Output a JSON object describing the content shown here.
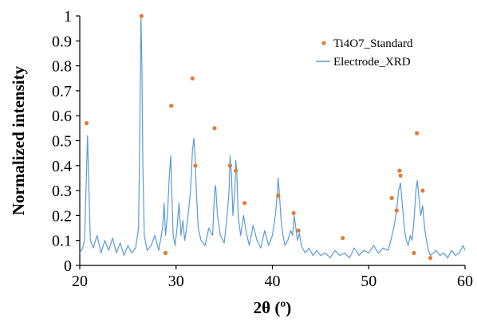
{
  "chart_data": {
    "type": "scatter",
    "xlabel": "2θ (º)",
    "ylabel": "Normalized intensity",
    "xlim": [
      20,
      60
    ],
    "ylim": [
      0,
      1
    ],
    "x_ticks": [
      "20",
      "30",
      "40",
      "50",
      "60"
    ],
    "y_ticks": [
      "0",
      "0.1",
      "0.2",
      "0.3",
      "0.4",
      "0.5",
      "0.6",
      "0.7",
      "0.8",
      "0.9",
      "1"
    ],
    "grid": false,
    "legend_position": "top-right",
    "series": [
      {
        "name": "Ti4O7_Standard",
        "kind": "scatter",
        "color": "#E07B39",
        "x": [
          20.7,
          26.4,
          28.9,
          29.5,
          31.7,
          32.0,
          34.0,
          35.6,
          36.2,
          37.1,
          40.6,
          42.2,
          42.7,
          47.3,
          52.4,
          52.9,
          53.2,
          53.3,
          54.7,
          55.0,
          55.6,
          56.4
        ],
        "y": [
          0.57,
          1.0,
          0.05,
          0.64,
          0.75,
          0.4,
          0.55,
          0.4,
          0.38,
          0.25,
          0.28,
          0.21,
          0.14,
          0.11,
          0.27,
          0.22,
          0.38,
          0.36,
          0.05,
          0.53,
          0.3,
          0.03
        ]
      },
      {
        "name": "Electrode_XRD",
        "kind": "line",
        "color": "#5B9BD5",
        "x": [
          20.0,
          20.3,
          20.5,
          20.65,
          20.8,
          20.95,
          21.1,
          21.4,
          21.8,
          22.2,
          22.6,
          23.0,
          23.4,
          23.8,
          24.2,
          24.6,
          25.0,
          25.4,
          25.8,
          26.1,
          26.25,
          26.35,
          26.45,
          26.55,
          26.7,
          27.0,
          27.4,
          27.8,
          28.2,
          28.6,
          28.75,
          28.9,
          29.1,
          29.3,
          29.45,
          29.55,
          29.7,
          29.9,
          30.1,
          30.3,
          30.5,
          30.7,
          30.9,
          31.1,
          31.3,
          31.5,
          31.7,
          31.85,
          31.95,
          32.1,
          32.3,
          32.6,
          33.0,
          33.4,
          33.8,
          34.0,
          34.1,
          34.3,
          34.6,
          35.0,
          35.3,
          35.5,
          35.6,
          35.75,
          35.9,
          36.1,
          36.2,
          36.3,
          36.45,
          36.7,
          37.0,
          37.3,
          37.6,
          38.0,
          38.4,
          38.8,
          39.2,
          39.6,
          40.0,
          40.3,
          40.5,
          40.6,
          40.7,
          40.9,
          41.1,
          41.3,
          41.6,
          41.9,
          42.1,
          42.25,
          42.4,
          42.6,
          42.8,
          43.0,
          43.4,
          43.8,
          44.2,
          44.6,
          45.0,
          45.5,
          46.0,
          46.5,
          47.0,
          47.5,
          48.0,
          48.5,
          49.0,
          49.5,
          50.0,
          50.5,
          51.0,
          51.5,
          52.0,
          52.3,
          52.6,
          52.9,
          53.1,
          53.3,
          53.5,
          53.7,
          53.9,
          54.1,
          54.3,
          54.5,
          54.7,
          54.9,
          55.05,
          55.2,
          55.4,
          55.6,
          55.8,
          56.0,
          56.2,
          56.4,
          56.7,
          57.0,
          57.4,
          57.8,
          58.2,
          58.6,
          59.0,
          59.4,
          59.8,
          60.0
        ],
        "y": [
          0.05,
          0.07,
          0.1,
          0.3,
          0.52,
          0.3,
          0.1,
          0.07,
          0.12,
          0.05,
          0.1,
          0.06,
          0.11,
          0.05,
          0.09,
          0.04,
          0.08,
          0.05,
          0.07,
          0.15,
          0.6,
          1.0,
          0.8,
          0.4,
          0.12,
          0.06,
          0.08,
          0.12,
          0.06,
          0.15,
          0.25,
          0.12,
          0.2,
          0.36,
          0.44,
          0.3,
          0.12,
          0.08,
          0.15,
          0.25,
          0.12,
          0.18,
          0.1,
          0.15,
          0.22,
          0.3,
          0.46,
          0.51,
          0.45,
          0.3,
          0.15,
          0.1,
          0.08,
          0.15,
          0.12,
          0.3,
          0.32,
          0.2,
          0.12,
          0.09,
          0.2,
          0.3,
          0.44,
          0.36,
          0.2,
          0.3,
          0.42,
          0.38,
          0.2,
          0.12,
          0.2,
          0.13,
          0.08,
          0.16,
          0.1,
          0.07,
          0.14,
          0.08,
          0.12,
          0.2,
          0.28,
          0.35,
          0.3,
          0.18,
          0.12,
          0.08,
          0.1,
          0.14,
          0.12,
          0.2,
          0.16,
          0.1,
          0.13,
          0.08,
          0.05,
          0.07,
          0.04,
          0.06,
          0.04,
          0.05,
          0.03,
          0.06,
          0.04,
          0.05,
          0.03,
          0.07,
          0.04,
          0.06,
          0.05,
          0.08,
          0.05,
          0.07,
          0.06,
          0.1,
          0.15,
          0.22,
          0.3,
          0.33,
          0.24,
          0.15,
          0.1,
          0.08,
          0.12,
          0.1,
          0.18,
          0.3,
          0.34,
          0.28,
          0.2,
          0.24,
          0.15,
          0.1,
          0.06,
          0.04,
          0.05,
          0.06,
          0.04,
          0.05,
          0.03,
          0.06,
          0.04,
          0.05,
          0.08,
          0.06
        ]
      }
    ]
  }
}
